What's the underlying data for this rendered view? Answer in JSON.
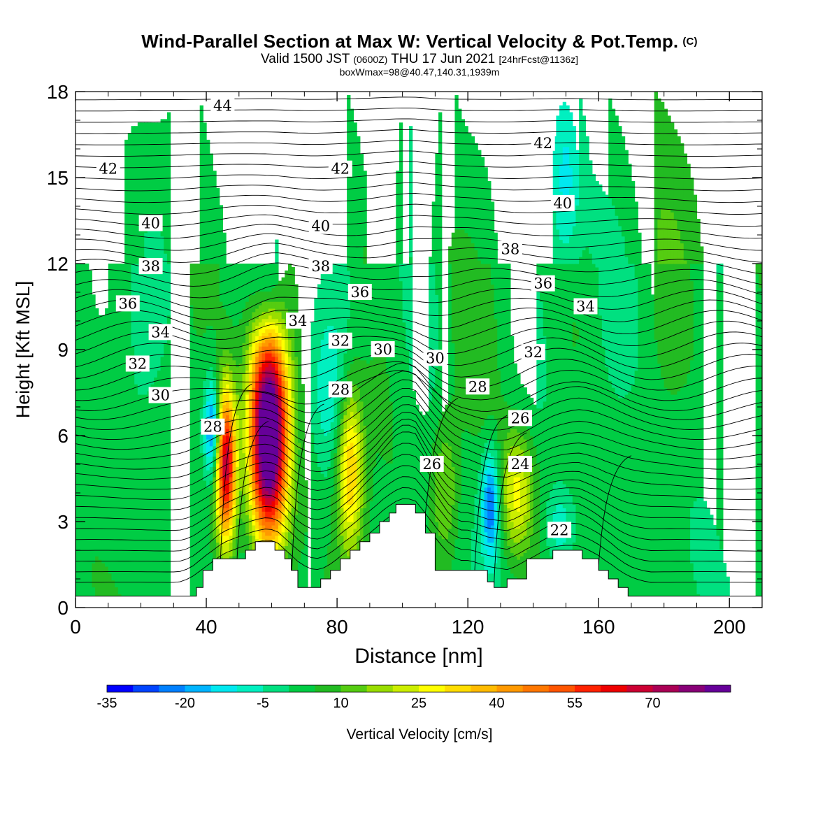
{
  "header": {
    "title_main": "Wind-Parallel Section at Max W: Vertical Velocity & Pot.Temp.",
    "title_tag": "(C)",
    "valid_pre": "Valid 1500 JST",
    "valid_z": "(0600Z)",
    "valid_date": "THU 17 Jun 2021",
    "valid_fcst": "[24hrFcst@1136z]",
    "box_info": "boxWmax=98@40.47,140.31,1939m"
  },
  "chart_data": {
    "type": "contour",
    "xlabel": "Distance [nm]",
    "ylabel": "Height [Kft MSL]",
    "xlim": [
      0,
      210
    ],
    "ylim": [
      0,
      18
    ],
    "x_ticks": [
      0,
      40,
      80,
      120,
      160,
      200
    ],
    "y_ticks": [
      0,
      3,
      6,
      9,
      12,
      15,
      18
    ],
    "fill_variable": "Vertical Velocity [cm/s]",
    "contour_variable": "Potential Temperature [C]",
    "colorbar": {
      "label": "Vertical Velocity [cm/s]",
      "tick_labels": [
        "-35",
        "-20",
        "-5",
        "10",
        "25",
        "40",
        "55",
        "70"
      ],
      "levels": [
        -35,
        -30,
        -25,
        -20,
        -15,
        -10,
        -5,
        0,
        5,
        10,
        15,
        20,
        25,
        30,
        35,
        40,
        45,
        50,
        55,
        60,
        65,
        70,
        75,
        80
      ],
      "colors": [
        "#0000ff",
        "#0044ff",
        "#0080ff",
        "#00b4ff",
        "#00e8f0",
        "#00f0c0",
        "#00e080",
        "#00cc44",
        "#22bb22",
        "#55cc11",
        "#99dd00",
        "#ccee00",
        "#ffff00",
        "#ffdd00",
        "#ffbb00",
        "#ff9900",
        "#ff7700",
        "#ff5500",
        "#ff2200",
        "#ee0000",
        "#cc0033",
        "#aa0055",
        "#880077",
        "#660099"
      ]
    },
    "max_w_cm_s": 98,
    "terrain_kft": [
      [
        0,
        0.4
      ],
      [
        37,
        0.4
      ],
      [
        37,
        0.7
      ],
      [
        39,
        0.7
      ],
      [
        39,
        1.3
      ],
      [
        42,
        1.3
      ],
      [
        42,
        1.7
      ],
      [
        52,
        1.7
      ],
      [
        52,
        2.0
      ],
      [
        55,
        2.0
      ],
      [
        55,
        2.3
      ],
      [
        61,
        2.3
      ],
      [
        61,
        2.0
      ],
      [
        64,
        2.0
      ],
      [
        64,
        1.7
      ],
      [
        66,
        1.7
      ],
      [
        66,
        1.3
      ],
      [
        68,
        1.3
      ],
      [
        68,
        0.7
      ],
      [
        75,
        0.7
      ],
      [
        75,
        1.0
      ],
      [
        78,
        1.0
      ],
      [
        78,
        1.3
      ],
      [
        81,
        1.3
      ],
      [
        81,
        1.7
      ],
      [
        84,
        1.7
      ],
      [
        84,
        2.0
      ],
      [
        87,
        2.0
      ],
      [
        87,
        2.3
      ],
      [
        90,
        2.3
      ],
      [
        90,
        2.6
      ],
      [
        93,
        2.6
      ],
      [
        93,
        3.0
      ],
      [
        96,
        3.0
      ],
      [
        96,
        3.3
      ],
      [
        98,
        3.3
      ],
      [
        98,
        3.6
      ],
      [
        104,
        3.6
      ],
      [
        104,
        3.3
      ],
      [
        107,
        3.3
      ],
      [
        107,
        2.6
      ],
      [
        110,
        2.6
      ],
      [
        110,
        1.3
      ],
      [
        126,
        1.3
      ],
      [
        126,
        0.9
      ],
      [
        128,
        0.9
      ],
      [
        128,
        0.7
      ],
      [
        132,
        0.7
      ],
      [
        132,
        1.0
      ],
      [
        138,
        1.0
      ],
      [
        138,
        1.7
      ],
      [
        146,
        1.7
      ],
      [
        146,
        2.0
      ],
      [
        155,
        2.0
      ],
      [
        155,
        1.7
      ],
      [
        160,
        1.7
      ],
      [
        160,
        1.3
      ],
      [
        163,
        1.3
      ],
      [
        163,
        1.0
      ],
      [
        166,
        1.0
      ],
      [
        166,
        0.7
      ],
      [
        169,
        0.7
      ],
      [
        169,
        0.4
      ],
      [
        210,
        0.4
      ]
    ],
    "updraft_cells": [
      {
        "x": 46,
        "y": 5.0,
        "sx": 2.2,
        "sy": 1.9,
        "w": 70
      },
      {
        "x": 59,
        "y": 6.0,
        "sx": 4.0,
        "sy": 2.6,
        "w": 98
      },
      {
        "x": 84,
        "y": 4.8,
        "sx": 2.8,
        "sy": 2.0,
        "w": 35
      },
      {
        "x": 135,
        "y": 4.0,
        "sx": 3.5,
        "sy": 1.5,
        "w": 24
      },
      {
        "x": 113,
        "y": 4.2,
        "sx": 3.0,
        "sy": 1.8,
        "w": 14
      }
    ],
    "downdraft_cells": [
      {
        "x": 42,
        "y": 6.2,
        "sx": 1.8,
        "sy": 1.2,
        "w": -30
      },
      {
        "x": 127,
        "y": 3.6,
        "sx": 1.9,
        "sy": 1.3,
        "w": -28
      },
      {
        "x": 148,
        "y": 2.8,
        "sx": 3.0,
        "sy": 0.9,
        "w": -12
      },
      {
        "x": 59,
        "y": 10.8,
        "sx": 3.5,
        "sy": 1.3,
        "w": -14
      },
      {
        "x": 105,
        "y": 15.5,
        "sx": 4.0,
        "sy": 3.0,
        "w": -10
      },
      {
        "x": 150,
        "y": 14.8,
        "sx": 3.0,
        "sy": 2.0,
        "w": -12
      },
      {
        "x": 78,
        "y": 7.5,
        "sx": 3.5,
        "sy": 1.8,
        "w": -8
      }
    ],
    "theta_labels": [
      {
        "text": "44",
        "x": 45,
        "y": 17.5
      },
      {
        "text": "42",
        "x": 10,
        "y": 15.3
      },
      {
        "text": "42",
        "x": 81,
        "y": 15.3
      },
      {
        "text": "42",
        "x": 143,
        "y": 16.2
      },
      {
        "text": "40",
        "x": 23,
        "y": 13.4
      },
      {
        "text": "40",
        "x": 75,
        "y": 13.3
      },
      {
        "text": "40",
        "x": 149,
        "y": 14.1
      },
      {
        "text": "38",
        "x": 23,
        "y": 11.9
      },
      {
        "text": "38",
        "x": 75,
        "y": 11.9
      },
      {
        "text": "38",
        "x": 133,
        "y": 12.5
      },
      {
        "text": "36",
        "x": 16,
        "y": 10.6
      },
      {
        "text": "36",
        "x": 87,
        "y": 11.0
      },
      {
        "text": "36",
        "x": 143,
        "y": 11.3
      },
      {
        "text": "34",
        "x": 26,
        "y": 9.6
      },
      {
        "text": "34",
        "x": 68,
        "y": 10.0
      },
      {
        "text": "34",
        "x": 156,
        "y": 10.5
      },
      {
        "text": "32",
        "x": 19,
        "y": 8.5
      },
      {
        "text": "32",
        "x": 81,
        "y": 9.3
      },
      {
        "text": "32",
        "x": 140,
        "y": 8.9
      },
      {
        "text": "30",
        "x": 26,
        "y": 7.4
      },
      {
        "text": "30",
        "x": 94,
        "y": 9.0
      },
      {
        "text": "30",
        "x": 110,
        "y": 8.7
      },
      {
        "text": "28",
        "x": 42,
        "y": 6.3
      },
      {
        "text": "28",
        "x": 81,
        "y": 7.6
      },
      {
        "text": "28",
        "x": 123,
        "y": 7.7
      },
      {
        "text": "26",
        "x": 109,
        "y": 5.0
      },
      {
        "text": "26",
        "x": 136,
        "y": 6.6
      },
      {
        "text": "24",
        "x": 136,
        "y": 5.0
      },
      {
        "text": "22",
        "x": 148,
        "y": 2.7
      }
    ]
  }
}
